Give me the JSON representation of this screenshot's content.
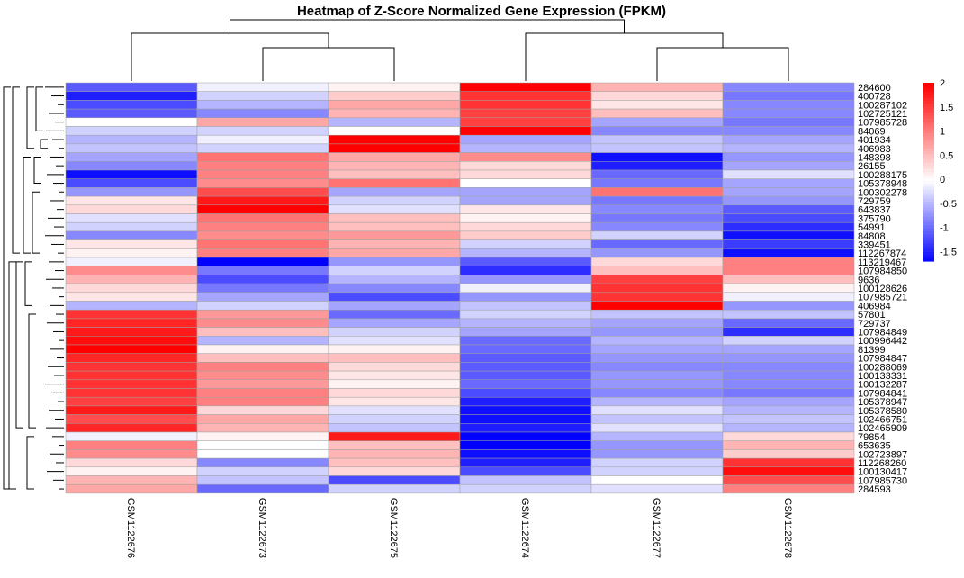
{
  "chart_data": {
    "type": "heatmap",
    "title": "Heatmap of Z-Score Normalized Gene Expression (FPKM)",
    "columns": [
      "GSM1122676",
      "GSM1122673",
      "GSM1122675",
      "GSM1122674",
      "GSM1122677",
      "GSM1122678"
    ],
    "rows": [
      "284600",
      "400728",
      "100287102",
      "102725121",
      "107985728",
      "84069",
      "401934",
      "406983",
      "148398",
      "26155",
      "100288175",
      "105378948",
      "100302278",
      "729759",
      "643837",
      "375790",
      "54991",
      "84808",
      "339451",
      "112267874",
      "113219467",
      "107984850",
      "9636",
      "100128626",
      "107985721",
      "406984",
      "57801",
      "729737",
      "107984849",
      "100996442",
      "81399",
      "107984847",
      "100288069",
      "100133331",
      "100132287",
      "107984841",
      "105378947",
      "105378580",
      "102466751",
      "102465909",
      "79854",
      "653635",
      "102723897",
      "112268260",
      "100130417",
      "107985730",
      "284593"
    ],
    "values": [
      [
        -1.1,
        -0.1,
        0.1,
        2.0,
        0.6,
        -0.8
      ],
      [
        -1.5,
        -0.3,
        0.4,
        1.6,
        0.3,
        -0.9
      ],
      [
        -1.2,
        -0.5,
        0.7,
        1.6,
        0.2,
        -0.8
      ],
      [
        -1.1,
        -0.8,
        0.6,
        1.5,
        0.5,
        -0.8
      ],
      [
        0.0,
        0.7,
        -0.5,
        1.5,
        -0.6,
        -0.9
      ],
      [
        -0.3,
        -0.3,
        0.0,
        2.0,
        -0.8,
        -0.8
      ],
      [
        -0.5,
        -0.1,
        2.0,
        -0.6,
        -0.4,
        -0.6
      ],
      [
        -0.4,
        -0.3,
        2.0,
        -0.5,
        -0.4,
        -0.5
      ],
      [
        -0.6,
        1.1,
        0.7,
        0.9,
        -1.6,
        -0.7
      ],
      [
        -0.8,
        1.0,
        0.6,
        0.3,
        -1.5,
        -0.6
      ],
      [
        -1.6,
        1.0,
        0.5,
        0.3,
        -1.0,
        -0.2
      ],
      [
        -1.2,
        0.9,
        1.1,
        0.0,
        -0.9,
        -0.6
      ],
      [
        -0.7,
        1.4,
        -0.6,
        -0.6,
        1.1,
        -0.6
      ],
      [
        0.2,
        1.8,
        -0.3,
        -0.6,
        -0.9,
        -0.7
      ],
      [
        0.3,
        2.0,
        -0.2,
        0.2,
        -0.8,
        -1.1
      ],
      [
        -0.2,
        1.1,
        0.5,
        0.1,
        -0.9,
        -1.2
      ],
      [
        -0.3,
        1.0,
        0.5,
        0.3,
        -0.8,
        -1.4
      ],
      [
        -0.8,
        0.9,
        0.8,
        0.4,
        -0.3,
        -1.6
      ],
      [
        0.2,
        1.1,
        0.6,
        -0.3,
        -1.0,
        -1.3
      ],
      [
        0.1,
        1.0,
        0.7,
        -0.5,
        -0.7,
        -1.6
      ],
      [
        -0.1,
        -1.7,
        -0.7,
        -1.1,
        0.3,
        1.0
      ],
      [
        0.9,
        -0.9,
        -0.3,
        -1.4,
        0.5,
        1.0
      ],
      [
        0.6,
        -1.2,
        -0.5,
        -0.7,
        1.5,
        0.5
      ],
      [
        0.3,
        -0.9,
        -0.8,
        -0.1,
        1.6,
        0.1
      ],
      [
        0.2,
        -0.6,
        -1.2,
        -0.7,
        1.6,
        -0.1
      ],
      [
        -0.5,
        -0.3,
        -0.6,
        -0.4,
        2.0,
        -0.7
      ],
      [
        1.6,
        0.8,
        -1.0,
        -0.3,
        -0.4,
        -0.4
      ],
      [
        1.7,
        0.9,
        -0.6,
        -0.5,
        -0.6,
        -1.0
      ],
      [
        1.8,
        0.5,
        -0.3,
        -0.6,
        -0.7,
        -1.4
      ],
      [
        1.9,
        -0.5,
        -0.2,
        -1.0,
        -0.5,
        -0.3
      ],
      [
        2.0,
        0.1,
        0.1,
        -1.0,
        -0.6,
        -0.6
      ],
      [
        1.7,
        0.5,
        0.5,
        -1.1,
        -0.7,
        -0.7
      ],
      [
        1.6,
        1.0,
        0.3,
        -1.1,
        -0.8,
        -0.8
      ],
      [
        1.6,
        0.9,
        0.2,
        -1.1,
        -0.7,
        -0.8
      ],
      [
        1.6,
        0.8,
        0.1,
        -1.0,
        -0.7,
        -0.8
      ],
      [
        1.6,
        1.0,
        0.3,
        -1.2,
        -0.8,
        -0.9
      ],
      [
        1.5,
        1.0,
        0.2,
        -1.5,
        -0.5,
        -0.6
      ],
      [
        1.8,
        0.3,
        -0.2,
        -1.6,
        -0.2,
        -0.5
      ],
      [
        1.4,
        0.7,
        -0.3,
        -1.6,
        -0.4,
        -0.4
      ],
      [
        1.7,
        0.6,
        -0.4,
        -1.5,
        -0.2,
        -0.5
      ],
      [
        -0.1,
        0.1,
        1.8,
        -1.7,
        -0.5,
        0.3
      ],
      [
        1.0,
        0.0,
        0.5,
        -1.7,
        -0.7,
        0.6
      ],
      [
        0.9,
        0.0,
        0.6,
        -1.6,
        -0.7,
        0.4
      ],
      [
        0.3,
        -0.8,
        0.5,
        -1.5,
        -0.3,
        1.6
      ],
      [
        0.1,
        -0.3,
        0.3,
        -1.2,
        -0.3,
        1.9
      ],
      [
        0.6,
        -0.4,
        -1.2,
        -0.4,
        0.0,
        1.4
      ],
      [
        0.7,
        -1.0,
        -0.3,
        -0.3,
        -0.2,
        1.0
      ]
    ],
    "color_scale": {
      "low": "#0000ff",
      "mid": "#ffffff",
      "high": "#ff0000",
      "min": -1.7,
      "max": 2.0
    },
    "legend": {
      "ticks": [
        2,
        1.5,
        1,
        0.5,
        0,
        -0.5,
        -1,
        -1.5
      ],
      "placement": "right"
    },
    "row_dendrogram": true,
    "column_dendrogram": true,
    "column_dendrogram_order": "((GSM1122676,(GSM1122673,GSM1122675)),(GSM1122674,(GSM1122677,GSM1122678)))"
  }
}
